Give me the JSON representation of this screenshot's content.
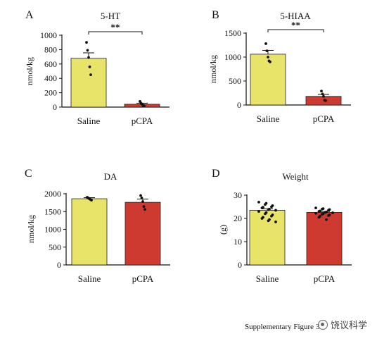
{
  "footer_text": "Supplementary Figure 3",
  "watermark_text": "饶议科学",
  "chart_data": [
    {
      "panel": "A",
      "type": "bar",
      "title": "5-HT",
      "ylabel": "nmol/kg",
      "categories": [
        "Saline",
        "pCPA"
      ],
      "values": [
        680,
        40
      ],
      "errors": [
        75,
        15
      ],
      "ylim": [
        0,
        1000
      ],
      "yticks": [
        0,
        200,
        400,
        600,
        800,
        1000
      ],
      "points": [
        [
          900,
          790,
          690,
          560,
          450
        ],
        [
          80,
          55,
          40,
          20,
          15
        ]
      ],
      "significance": "**",
      "colors": [
        "#e8e46a",
        "#cf3a30"
      ]
    },
    {
      "panel": "B",
      "type": "bar",
      "title": "5-HIAA",
      "ylabel": "nmol/kg",
      "categories": [
        "Saline",
        "pCPA"
      ],
      "values": [
        1060,
        180
      ],
      "errors": [
        80,
        40
      ],
      "ylim": [
        0,
        1500
      ],
      "yticks": [
        0,
        500,
        1000,
        1500
      ],
      "points": [
        [
          1280,
          1130,
          1000,
          920,
          900
        ],
        [
          290,
          230,
          180,
          100,
          90
        ]
      ],
      "significance": "**",
      "colors": [
        "#e8e46a",
        "#cf3a30"
      ]
    },
    {
      "panel": "C",
      "type": "bar",
      "title": "DA",
      "ylabel": "nmol/kg",
      "categories": [
        "Saline",
        "pCPA"
      ],
      "values": [
        1860,
        1760
      ],
      "errors": [
        30,
        90
      ],
      "ylim": [
        0,
        2000
      ],
      "yticks": [
        0,
        500,
        1000,
        1500,
        2000
      ],
      "points": [
        [
          1900,
          1880,
          1860,
          1840,
          1820
        ],
        [
          1950,
          1880,
          1780,
          1640,
          1560
        ]
      ],
      "significance": "",
      "colors": [
        "#e8e46a",
        "#cf3a30"
      ]
    },
    {
      "panel": "D",
      "type": "bar",
      "title": "Weight",
      "ylabel": "(g)",
      "categories": [
        "Saline",
        "pCPA"
      ],
      "values": [
        23.5,
        22.6
      ],
      "errors": [
        0.6,
        0.4
      ],
      "ylim": [
        0,
        30
      ],
      "yticks": [
        0,
        10,
        20,
        30
      ],
      "points": [
        [
          27,
          26.5,
          26,
          25.5,
          25,
          24.8,
          24.5,
          24,
          23.8,
          23.5,
          23,
          22.5,
          22,
          21.5,
          21,
          20.5,
          20,
          19.5,
          19,
          18.5
        ],
        [
          24.5,
          24.2,
          24,
          23.8,
          23.5,
          23.2,
          23,
          22.8,
          22.6,
          22.4,
          22.2,
          22,
          21.8,
          21.5,
          21.2,
          21,
          20.5,
          19.5
        ]
      ],
      "significance": "",
      "colors": [
        "#e8e46a",
        "#cf3a30"
      ]
    }
  ]
}
